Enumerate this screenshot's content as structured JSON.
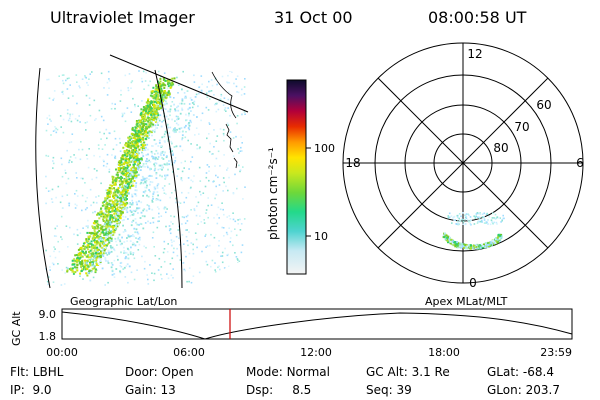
{
  "header": {
    "instrument": "Ultraviolet Imager",
    "date": "31 Oct 00",
    "time": "08:00:58 UT"
  },
  "colorbar": {
    "unit_label": "photon cm⁻²s⁻¹",
    "ticks": [
      "100",
      "10"
    ]
  },
  "polar_plot": {
    "mlt_labels": [
      "12",
      "18",
      "6",
      "0"
    ],
    "lat_labels": [
      "60",
      "70",
      "80"
    ]
  },
  "image_labels": {
    "left": "Geographic Lat/Lon",
    "right": "Apex MLat/MLT"
  },
  "altitude_plot": {
    "axis_label": "GC Alt",
    "y_ticks": [
      "9.0",
      "1.8"
    ],
    "time_ticks": [
      "00:00",
      "06:00",
      "12:00",
      "18:00",
      "23:59"
    ]
  },
  "info": {
    "filter": {
      "label": "Flt:",
      "value": "LBHL"
    },
    "ip": {
      "label": "IP:",
      "value": "9.0"
    },
    "door": {
      "label": "Door:",
      "value": "Open"
    },
    "gain": {
      "label": "Gain:",
      "value": "13"
    },
    "mode": {
      "label": "Mode:",
      "value": "Normal"
    },
    "dsp": {
      "label": "Dsp:",
      "value": "8.5"
    },
    "gc_alt": {
      "label": "GC Alt:",
      "value": "3.1 Re"
    },
    "seq": {
      "label": "Seq:",
      "value": "39"
    },
    "glat": {
      "label": "GLat:",
      "value": "-68.4"
    },
    "glon": {
      "label": "GLon:",
      "value": "203.7"
    }
  },
  "colors": {
    "marker": "#cc0000",
    "aurora_dense": "#7ab800",
    "aurora_faint": "#9ad8ff"
  }
}
